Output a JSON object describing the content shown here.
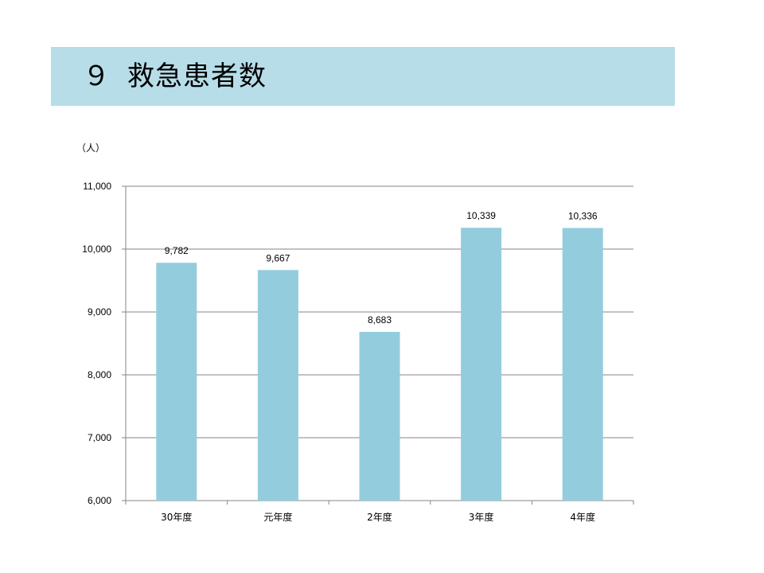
{
  "slide": {
    "title_number": "９",
    "title_text": "救急患者数",
    "unit_label": "（人）"
  },
  "colors": {
    "title_band": "#b7dde8",
    "bar": "#93cddd",
    "gridline": "#868686"
  },
  "chart_data": {
    "type": "bar",
    "title": "救急患者数",
    "categories": [
      "30年度",
      "元年度",
      "2年度",
      "3年度",
      "4年度"
    ],
    "values": [
      9782,
      9667,
      8683,
      10339,
      10336
    ],
    "data_labels": [
      "9,782",
      "9,667",
      "8,683",
      "10,339",
      "10,336"
    ],
    "ylabel": "（人）",
    "ylim": [
      6000,
      11000
    ],
    "yticks": [
      6000,
      7000,
      8000,
      9000,
      10000,
      11000
    ],
    "ytick_labels": [
      "6,000",
      "7,000",
      "8,000",
      "9,000",
      "10,000",
      "11,000"
    ],
    "grid": true,
    "legend": "none"
  }
}
